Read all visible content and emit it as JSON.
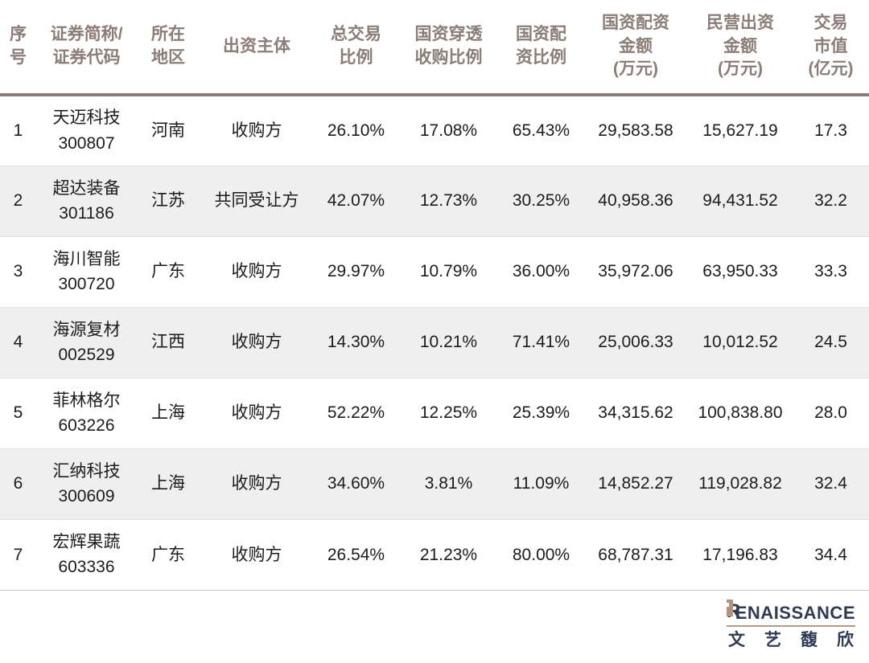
{
  "colors": {
    "header_text": "#8b7d75",
    "header_rule": "#8a7f78",
    "body_text": "#1c1c1c",
    "stripe_bg": "#f0efef",
    "row_divider": "#e3e1e0",
    "footer_rule": "#cbc4c0",
    "logo_navy": "#2e3a53",
    "logo_tan": "#b2937b"
  },
  "table": {
    "column_keys": [
      "no",
      "name-code",
      "region",
      "entity",
      "total-ratio",
      "penetration-ratio",
      "allocation-ratio",
      "allocation-amount",
      "private-amount",
      "market-cap"
    ],
    "display_headers": [
      "序\n号",
      "证券简称/\n证券代码",
      "所在\n地区",
      "出资主体",
      "总交易\n比例",
      "国资穿透\n收购比例",
      "国资配\n资比例",
      "国资配资\n金额\n(万元)",
      "民营出资\n金额\n(万元)",
      "交易\n市值\n(亿元)"
    ]
  },
  "chart_data": {
    "type": "table",
    "columns": [
      "序号",
      "证券简称/证券代码",
      "所在地区",
      "出资主体",
      "总交易比例",
      "国资穿透收购比例",
      "国资配资比例",
      "国资配资金额(万元)",
      "民营出资金额(万元)",
      "交易市值(亿元)"
    ],
    "rows": [
      [
        "1",
        "天迈科技\n300807",
        "河南",
        "收购方",
        "26.10%",
        "17.08%",
        "65.43%",
        "29,583.58",
        "15,627.19",
        "17.3"
      ],
      [
        "2",
        "超达装备\n301186",
        "江苏",
        "共同受让方",
        "42.07%",
        "12.73%",
        "30.25%",
        "40,958.36",
        "94,431.52",
        "32.2"
      ],
      [
        "3",
        "海川智能\n300720",
        "广东",
        "收购方",
        "29.97%",
        "10.79%",
        "36.00%",
        "35,972.06",
        "63,950.33",
        "33.3"
      ],
      [
        "4",
        "海源复材\n002529",
        "江西",
        "收购方",
        "14.30%",
        "10.21%",
        "71.41%",
        "25,006.33",
        "10,012.52",
        "24.5"
      ],
      [
        "5",
        "菲林格尔\n603226",
        "上海",
        "收购方",
        "52.22%",
        "12.25%",
        "25.39%",
        "34,315.62",
        "100,838.80",
        "28.0"
      ],
      [
        "6",
        "汇纳科技\n300609",
        "上海",
        "收购方",
        "34.60%",
        "3.81%",
        "11.09%",
        "14,852.27",
        "119,028.82",
        "32.4"
      ],
      [
        "7",
        "宏辉果蔬\n603336",
        "广东",
        "收购方",
        "26.54%",
        "21.23%",
        "80.00%",
        "68,787.31",
        "17,196.83",
        "34.4"
      ]
    ]
  },
  "brand": {
    "logo_r": "R",
    "logo_rest": "ENAISSANCE",
    "logo_cn_chars": [
      "文",
      "艺",
      "馥",
      "欣"
    ]
  }
}
